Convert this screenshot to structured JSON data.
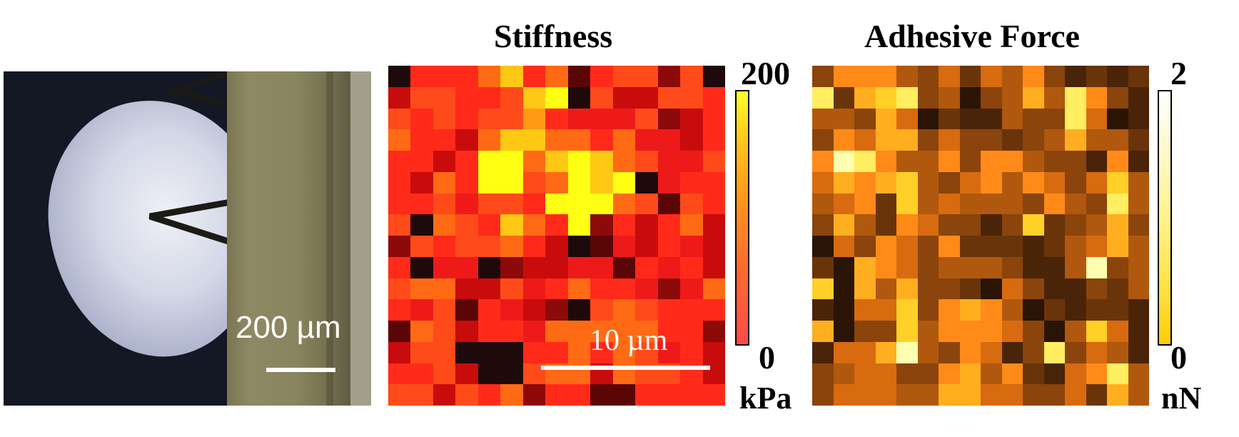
{
  "photo": {
    "scale_label": "200 µm"
  },
  "stiffness": {
    "title": "Stiffness",
    "scale_label": "10 µm",
    "colorbar": {
      "max": "200",
      "min": "0",
      "unit": "kPa"
    },
    "colors": {
      "a": "#1e0a0a",
      "b": "#5a0606",
      "c": "#8c0a0a",
      "d": "#c80c0c",
      "e": "#ee1a1a",
      "f": "#ff2a1a",
      "g": "#ff4a1a",
      "h": "#ff6a14",
      "i": "#ff9a14",
      "j": "#ffc814",
      "k": "#ffff14"
    },
    "grid": [
      "afffhjfhbfggcga",
      "dggffgjkagddggf",
      "gfgfggifeeegcdf",
      "hffdhjjhhfheedf",
      "ffdfkkhjkjhgeeg",
      "fdhfkkghkjkaeff",
      "ffgeggfkkkhgbgf",
      "gahgfjhfkcfdfhd",
      "cgfgghfdabedfed",
      "faeeacddeebfefd",
      "ghhddgefhffeceh",
      "fegbfedcaghgfff",
      "bhgdffehhhhhffc",
      "dggaaaffhfhgefd",
      "ffgdaaghhdhggfd",
      "ggdgfhcffbbffff"
    ]
  },
  "adhesive": {
    "title": "Adhesive Force",
    "colorbar": {
      "max": "2",
      "min": "0",
      "unit": "nN"
    },
    "colors": {
      "A": "#2a1406",
      "B": "#4a2408",
      "C": "#6a340a",
      "D": "#8a440c",
      "E": "#b0580e",
      "F": "#d86a10",
      "G": "#ff8a18",
      "H": "#ffae20",
      "I": "#ffd028",
      "J": "#ffee60",
      "K": "#ffffb0"
    },
    "grid": [
      "DGGGEDFCFEGDBCBC",
      "JCHIJDEADEHEJGDB",
      "EEDHFACBBEDDJFAB",
      "DGFHHDFDDCDEHEEC",
      "GKJGEEGDGGEDDBGB",
      "FHGHIEDFGEGFDFIE",
      "EFGCIEFEEEDGEDJE",
      "DHECGFDDBDICDEHD",
      "AFDGFDGCCCBCEFHE",
      "CAHGFDEEEDBBEKDE",
      "IAHEHDDCAFDBBDCE",
      "BAFFIDGHGEACBCCB",
      "HADDIEGGGFDAEIFB",
      "BFFHKEDGFBDJDFEB",
      "DEFFDDGHEGCBFGJE",
      "DFFFEEHHFFDDFCHE"
    ]
  }
}
